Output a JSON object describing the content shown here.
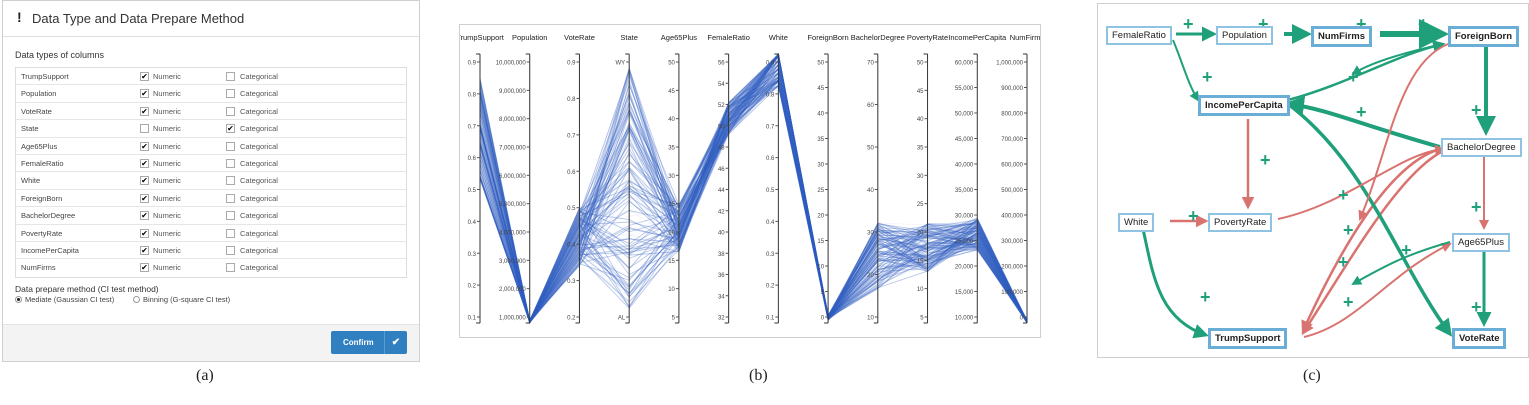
{
  "panel_a": {
    "title": "Data Type and Data Prepare Method",
    "alert_icon": "exclamation-icon",
    "section_types": "Data types of columns",
    "columns": [
      {
        "name": "TrumpSupport",
        "numeric": true,
        "categorical": false
      },
      {
        "name": "Population",
        "numeric": true,
        "categorical": false
      },
      {
        "name": "VoteRate",
        "numeric": true,
        "categorical": false
      },
      {
        "name": "State",
        "numeric": false,
        "categorical": true
      },
      {
        "name": "Age65Plus",
        "numeric": true,
        "categorical": false
      },
      {
        "name": "FemaleRatio",
        "numeric": true,
        "categorical": false
      },
      {
        "name": "White",
        "numeric": true,
        "categorical": false
      },
      {
        "name": "ForeignBorn",
        "numeric": true,
        "categorical": false
      },
      {
        "name": "BachelorDegree",
        "numeric": true,
        "categorical": false
      },
      {
        "name": "PovertyRate",
        "numeric": true,
        "categorical": false
      },
      {
        "name": "IncomePerCapita",
        "numeric": true,
        "categorical": false
      },
      {
        "name": "NumFirms",
        "numeric": true,
        "categorical": false
      }
    ],
    "numeric_label": "Numeric",
    "categorical_label": "Categorical",
    "section_method": "Data prepare method (CI test method)",
    "methods": [
      {
        "label": "Mediate (Gaussian CI test)",
        "selected": true
      },
      {
        "label": "Binning (G-square CI test)",
        "selected": false
      }
    ],
    "confirm_label": "Confirm",
    "check_icon": "checkmark-icon"
  },
  "panel_b": {
    "axes": [
      {
        "name": "TrumpSupport",
        "ticks": [
          "0.9",
          "0.8",
          "0.7",
          "0.6",
          "0.5",
          "0.4",
          "0.3",
          "0.2",
          "0.1"
        ]
      },
      {
        "name": "Population",
        "ticks": [
          "10,000,000",
          "9,000,000",
          "8,000,000",
          "7,000,000",
          "6,000,000",
          "5,000,000",
          "4,000,000",
          "3,000,000",
          "2,000,000",
          "1,000,000"
        ]
      },
      {
        "name": "VoteRate",
        "ticks": [
          "0.9",
          "0.8",
          "0.7",
          "0.6",
          "0.5",
          "0.4",
          "0.3",
          "0.2"
        ]
      },
      {
        "name": "State",
        "ticks": [
          "WY",
          "AL"
        ]
      },
      {
        "name": "Age65Plus",
        "ticks": [
          "50",
          "45",
          "40",
          "35",
          "30",
          "25",
          "20",
          "15",
          "10",
          "5"
        ]
      },
      {
        "name": "FemaleRatio",
        "ticks": [
          "56",
          "54",
          "52",
          "50",
          "48",
          "46",
          "44",
          "42",
          "40",
          "38",
          "36",
          "34",
          "32"
        ]
      },
      {
        "name": "White",
        "ticks": [
          "0.9",
          "0.8",
          "0.7",
          "0.6",
          "0.5",
          "0.4",
          "0.3",
          "0.2",
          "0.1"
        ]
      },
      {
        "name": "ForeignBorn",
        "ticks": [
          "50",
          "45",
          "40",
          "35",
          "30",
          "25",
          "20",
          "15",
          "10",
          "5",
          "0"
        ]
      },
      {
        "name": "BachelorDegree",
        "ticks": [
          "70",
          "60",
          "50",
          "40",
          "30",
          "20",
          "10"
        ]
      },
      {
        "name": "PovertyRate",
        "ticks": [
          "50",
          "45",
          "40",
          "35",
          "30",
          "25",
          "20",
          "15",
          "10",
          "5"
        ]
      },
      {
        "name": "IncomePerCapita",
        "ticks": [
          "60,000",
          "55,000",
          "50,000",
          "45,000",
          "40,000",
          "35,000",
          "30,000",
          "25,000",
          "20,000",
          "15,000",
          "10,000"
        ]
      },
      {
        "name": "NumFirms",
        "ticks": [
          "1,000,000",
          "900,000",
          "800,000",
          "700,000",
          "600,000",
          "500,000",
          "400,000",
          "300,000",
          "200,000",
          "100,000",
          "0"
        ]
      }
    ],
    "line_color": "#3a64c4"
  },
  "panel_c": {
    "positive_sign": "+",
    "colors": {
      "positive": "#1fa07a",
      "negative": "#d9736f",
      "node_border": "#8ec3e3"
    },
    "nodes": [
      {
        "id": "FemaleRatio",
        "label": "FemaleRatio",
        "bold": false
      },
      {
        "id": "Population",
        "label": "Population",
        "bold": false
      },
      {
        "id": "NumFirms",
        "label": "NumFirms",
        "bold": true
      },
      {
        "id": "ForeignBorn",
        "label": "ForeignBorn",
        "bold": true
      },
      {
        "id": "IncomePerCapita",
        "label": "IncomePerCapita",
        "bold": true
      },
      {
        "id": "BachelorDegree",
        "label": "BachelorDegree",
        "bold": false
      },
      {
        "id": "White",
        "label": "White",
        "bold": false
      },
      {
        "id": "PovertyRate",
        "label": "PovertyRate",
        "bold": false
      },
      {
        "id": "Age65Plus",
        "label": "Age65Plus",
        "bold": false
      },
      {
        "id": "TrumpSupport",
        "label": "TrumpSupport",
        "bold": true
      },
      {
        "id": "VoteRate",
        "label": "VoteRate",
        "bold": true
      }
    ]
  },
  "captions": {
    "a": "(a)",
    "b": "(b)",
    "c": "(c)"
  }
}
